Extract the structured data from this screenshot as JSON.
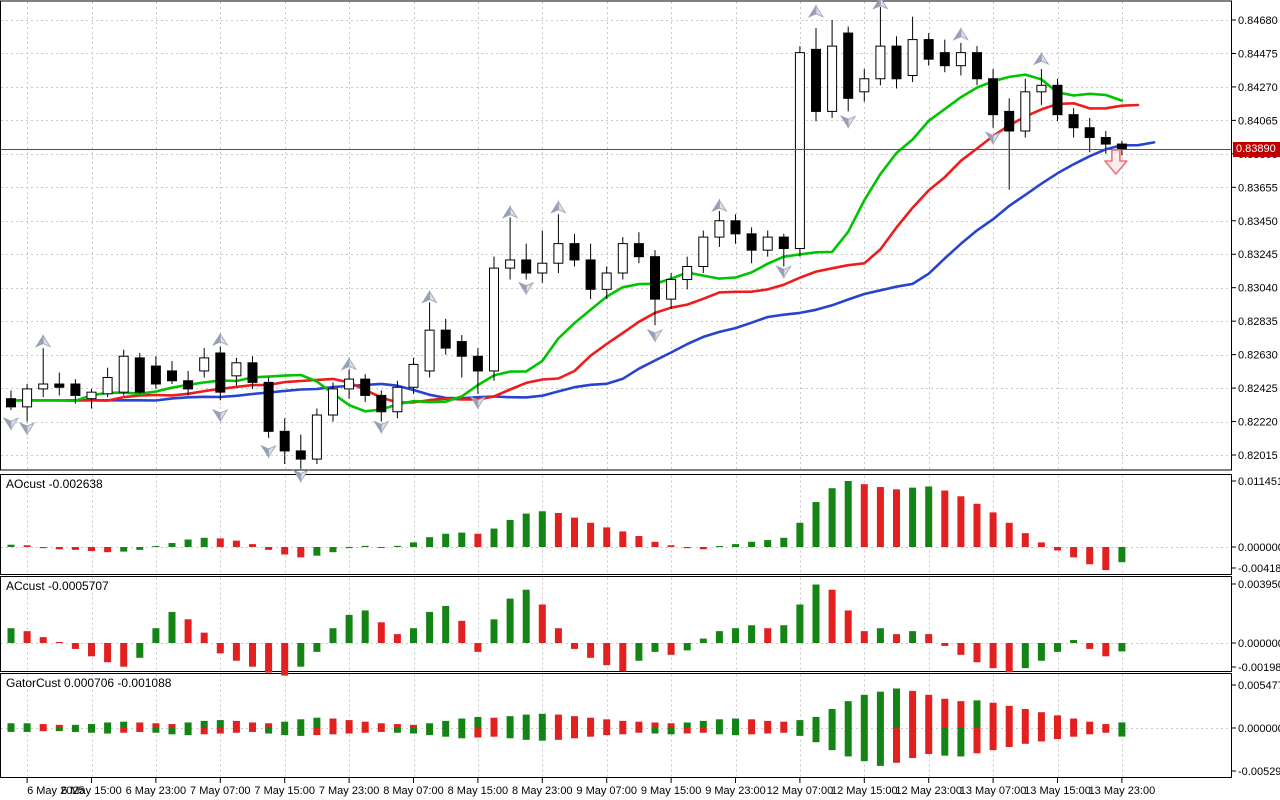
{
  "current_price_label": "0.83890",
  "chart_data": {
    "type": "candlestick-with-indicators",
    "timeframe": "2-hour bars",
    "title": "",
    "current_price": "0.83890",
    "current_price_value": 0.8389,
    "price_axis": {
      "ticks": [
        "0.84680",
        "0.84475",
        "0.84270",
        "0.84065",
        "0.83860",
        "0.83655",
        "0.83450",
        "0.83245",
        "0.83040",
        "0.82835",
        "0.82630",
        "0.82425",
        "0.82220",
        "0.82015"
      ],
      "tick_values": [
        0.8468,
        0.84475,
        0.8427,
        0.84065,
        0.8386,
        0.83655,
        0.8345,
        0.83245,
        0.8304,
        0.82835,
        0.8263,
        0.82425,
        0.8222,
        0.82015
      ],
      "max": 0.8468,
      "min": 0.82015,
      "step": 0.00205
    },
    "time_axis": {
      "labels": [
        "6 May 2025",
        "6 May 15:00",
        "6 May 23:00",
        "7 May 07:00",
        "7 May 15:00",
        "7 May 23:00",
        "8 May 07:00",
        "8 May 15:00",
        "8 May 23:00",
        "9 May 07:00",
        "9 May 15:00",
        "9 May 23:00",
        "12 May 07:00",
        "12 May 15:00",
        "12 May 23:00",
        "13 May 07:00",
        "13 May 15:00",
        "13 May 23:00"
      ],
      "label_every_n_bars": 4,
      "first_label_bar": 1
    },
    "candles": [
      [
        0.8236,
        0.8241,
        0.8229,
        0.8231
      ],
      [
        0.8231,
        0.8245,
        0.8222,
        0.8242
      ],
      [
        0.8242,
        0.8267,
        0.8237,
        0.8245
      ],
      [
        0.8245,
        0.8252,
        0.8238,
        0.8243
      ],
      [
        0.8245,
        0.8248,
        0.8233,
        0.8238
      ],
      [
        0.8236,
        0.8242,
        0.823,
        0.824
      ],
      [
        0.8239,
        0.8255,
        0.8237,
        0.8249
      ],
      [
        0.824,
        0.8266,
        0.8238,
        0.8262
      ],
      [
        0.8261,
        0.8264,
        0.8239,
        0.824
      ],
      [
        0.8256,
        0.8262,
        0.8242,
        0.8245
      ],
      [
        0.8253,
        0.8259,
        0.8245,
        0.8247
      ],
      [
        0.8247,
        0.8253,
        0.8238,
        0.8242
      ],
      [
        0.8253,
        0.8267,
        0.8249,
        0.8261
      ],
      [
        0.8264,
        0.8268,
        0.8235,
        0.824
      ],
      [
        0.825,
        0.8261,
        0.8244,
        0.8258
      ],
      [
        0.8258,
        0.8262,
        0.8242,
        0.8246
      ],
      [
        0.8246,
        0.8249,
        0.8212,
        0.8216
      ],
      [
        0.8216,
        0.8224,
        0.8196,
        0.8204
      ],
      [
        0.8204,
        0.8214,
        0.8193,
        0.8199
      ],
      [
        0.8199,
        0.823,
        0.8196,
        0.8226
      ],
      [
        0.8226,
        0.8246,
        0.8222,
        0.8242
      ],
      [
        0.8242,
        0.8254,
        0.8236,
        0.8248
      ],
      [
        0.8248,
        0.8251,
        0.8234,
        0.8238
      ],
      [
        0.8238,
        0.8241,
        0.8222,
        0.8228
      ],
      [
        0.8228,
        0.8247,
        0.8224,
        0.8243
      ],
      [
        0.8243,
        0.8261,
        0.8239,
        0.8257
      ],
      [
        0.8253,
        0.8295,
        0.8249,
        0.8278
      ],
      [
        0.8278,
        0.8285,
        0.8263,
        0.8267
      ],
      [
        0.8271,
        0.8275,
        0.8249,
        0.8262
      ],
      [
        0.8262,
        0.8267,
        0.8239,
        0.8253
      ],
      [
        0.8253,
        0.8323,
        0.8247,
        0.8316
      ],
      [
        0.8316,
        0.8347,
        0.8309,
        0.8321
      ],
      [
        0.8321,
        0.8331,
        0.8309,
        0.8313
      ],
      [
        0.8313,
        0.8339,
        0.8307,
        0.8319
      ],
      [
        0.8319,
        0.8349,
        0.8313,
        0.8331
      ],
      [
        0.8331,
        0.8337,
        0.8317,
        0.8321
      ],
      [
        0.8321,
        0.8331,
        0.8297,
        0.8303
      ],
      [
        0.8303,
        0.8317,
        0.8297,
        0.8313
      ],
      [
        0.8313,
        0.8335,
        0.8309,
        0.8331
      ],
      [
        0.8331,
        0.8338,
        0.8319,
        0.8323
      ],
      [
        0.8323,
        0.8327,
        0.8281,
        0.8297
      ],
      [
        0.8297,
        0.8313,
        0.8291,
        0.8309
      ],
      [
        0.8309,
        0.8323,
        0.8303,
        0.8317
      ],
      [
        0.8317,
        0.8339,
        0.8313,
        0.8335
      ],
      [
        0.8335,
        0.8351,
        0.8329,
        0.8345
      ],
      [
        0.8345,
        0.8349,
        0.8331,
        0.8337
      ],
      [
        0.8337,
        0.8341,
        0.8319,
        0.8327
      ],
      [
        0.8327,
        0.8339,
        0.8323,
        0.8335
      ],
      [
        0.8335,
        0.8337,
        0.8317,
        0.8328
      ],
      [
        0.8328,
        0.8452,
        0.8323,
        0.8448
      ],
      [
        0.845,
        0.8463,
        0.8406,
        0.8412
      ],
      [
        0.8412,
        0.8468,
        0.8408,
        0.8452
      ],
      [
        0.846,
        0.8464,
        0.8412,
        0.842
      ],
      [
        0.8424,
        0.8438,
        0.8418,
        0.8432
      ],
      [
        0.8432,
        0.8476,
        0.8428,
        0.8452
      ],
      [
        0.8452,
        0.8458,
        0.8426,
        0.8432
      ],
      [
        0.8434,
        0.847,
        0.843,
        0.8456
      ],
      [
        0.8456,
        0.846,
        0.844,
        0.8444
      ],
      [
        0.8448,
        0.8456,
        0.8436,
        0.844
      ],
      [
        0.844,
        0.8454,
        0.8434,
        0.8448
      ],
      [
        0.8448,
        0.8452,
        0.8428,
        0.8432
      ],
      [
        0.8432,
        0.8438,
        0.8402,
        0.841
      ],
      [
        0.8412,
        0.842,
        0.8364,
        0.84
      ],
      [
        0.84,
        0.8432,
        0.8396,
        0.8424
      ],
      [
        0.8424,
        0.8438,
        0.8416,
        0.8428
      ],
      [
        0.8428,
        0.8432,
        0.8406,
        0.841
      ],
      [
        0.841,
        0.8414,
        0.8396,
        0.8402
      ],
      [
        0.8402,
        0.8408,
        0.8387,
        0.8396
      ],
      [
        0.8396,
        0.84,
        0.8386,
        0.8392
      ],
      [
        0.8392,
        0.8394,
        0.8385,
        0.8389
      ]
    ],
    "alligator": {
      "jaw": {
        "period": 13,
        "shift": 8,
        "color": "#2644cf",
        "name": "jaw"
      },
      "teeth": {
        "period": 8,
        "shift": 5,
        "color": "#ee1c1c",
        "name": "teeth"
      },
      "lips": {
        "period": 5,
        "shift": 3,
        "color": "#00c400",
        "name": "lips"
      }
    },
    "fractals": {
      "up": [
        [
          2,
          0.8271
        ],
        [
          13,
          0.8272
        ],
        [
          21,
          0.8257
        ],
        [
          26,
          0.8298
        ],
        [
          31,
          0.835
        ],
        [
          34,
          0.8353
        ],
        [
          44,
          0.8354
        ],
        [
          50,
          0.8473
        ],
        [
          54,
          0.8478
        ],
        [
          59,
          0.8459
        ],
        [
          64,
          0.8444
        ]
      ],
      "down": [
        [
          0,
          0.8221
        ],
        [
          1,
          0.8218
        ],
        [
          13,
          0.8226
        ],
        [
          16,
          0.8204
        ],
        [
          18,
          0.8189
        ],
        [
          23,
          0.8219
        ],
        [
          29,
          0.8234
        ],
        [
          32,
          0.8304
        ],
        [
          40,
          0.8275
        ],
        [
          48,
          0.8314
        ],
        [
          52,
          0.8406
        ],
        [
          61,
          0.8396
        ]
      ]
    },
    "sell_arrow": {
      "bar": 69,
      "note": "red outlined down-arrow below last candle"
    },
    "ao": {
      "name": "AOcust",
      "last_value": "-0.002638",
      "title": "AOcust -0.002638",
      "axis": [
        "0.011451",
        "0.000000",
        "-0.004180"
      ],
      "values": [
        0.0004,
        0.0003,
        -0.0002,
        -0.0004,
        -0.0005,
        -0.0007,
        -0.0009,
        -0.0008,
        -0.0005,
        0.0001,
        0.0007,
        0.0013,
        0.0016,
        0.0015,
        0.0011,
        0.0005,
        -0.0005,
        -0.0013,
        -0.0018,
        -0.0015,
        -0.0009,
        -0.0002,
        0.0002,
        -0.0001,
        0.0002,
        0.0008,
        0.0017,
        0.0023,
        0.0025,
        0.0023,
        0.0032,
        0.0047,
        0.0058,
        0.0062,
        0.0059,
        0.0051,
        0.0042,
        0.0034,
        0.0027,
        0.0019,
        0.0009,
        0.0003,
        -0.0002,
        -0.0004,
        0.0001,
        0.0005,
        0.0009,
        0.0012,
        0.0016,
        0.0042,
        0.0078,
        0.0102,
        0.011451,
        0.0109,
        0.0104,
        0.01,
        0.0103,
        0.0105,
        0.0098,
        0.0088,
        0.0075,
        0.006,
        0.0042,
        0.0024,
        0.0008,
        -0.0006,
        -0.0018,
        -0.003,
        -0.004,
        -0.002638
      ]
    },
    "ac": {
      "name": "ACcust",
      "last_value": "-0.0005707",
      "title": "ACcust -0.0005707",
      "axis": [
        "0.0039504",
        "0.0000000",
        "-0.0019834"
      ],
      "values": [
        0.001,
        0.0008,
        0.0004,
        0.0,
        -0.0004,
        -0.0009,
        -0.0013,
        -0.0016,
        -0.001,
        0.001,
        0.0021,
        0.0016,
        0.0007,
        -0.0007,
        -0.0012,
        -0.0016,
        -0.002,
        -0.0022,
        -0.0016,
        -0.0006,
        0.001,
        0.0019,
        0.0022,
        0.0014,
        0.0006,
        0.001,
        0.0021,
        0.0025,
        0.0015,
        -0.0006,
        0.0016,
        0.003,
        0.0036,
        0.0026,
        0.001,
        -0.0004,
        -0.001,
        -0.0015,
        -0.0019,
        -0.0012,
        -0.0006,
        -0.0008,
        -0.0005,
        0.0003,
        0.0008,
        0.001,
        0.0012,
        0.001,
        0.0012,
        0.0026,
        0.0039504,
        0.0036,
        0.0022,
        0.0008,
        0.001,
        0.0006,
        0.0008,
        0.0006,
        -0.0002,
        -0.0008,
        -0.0013,
        -0.0017,
        -0.0019834,
        -0.0017,
        -0.0012,
        -0.0006,
        0.0002,
        -0.0004,
        -0.0009,
        -0.0005707
      ]
    },
    "gator": {
      "name": "GatorCust",
      "last_value": "0.000706 -0.001088",
      "title": "GatorCust 0.000706 -0.001088",
      "axis": [
        "0.005477",
        "0.000000",
        "-0.005290"
      ],
      "upper": [
        0.0006,
        0.0006,
        0.0005,
        0.0004,
        0.0004,
        0.0005,
        0.0007,
        0.0008,
        0.0007,
        0.0006,
        0.0005,
        0.0007,
        0.0009,
        0.001,
        0.0009,
        0.0007,
        0.0006,
        0.0008,
        0.0011,
        0.0013,
        0.0012,
        0.001,
        0.0008,
        0.0006,
        0.0005,
        0.0004,
        0.0006,
        0.0009,
        0.0012,
        0.0014,
        0.0013,
        0.0015,
        0.0017,
        0.0018,
        0.0017,
        0.0015,
        0.0013,
        0.0011,
        0.0009,
        0.0008,
        0.0007,
        0.0006,
        0.0007,
        0.0009,
        0.0011,
        0.0012,
        0.0011,
        0.0009,
        0.0008,
        0.001,
        0.0014,
        0.0024,
        0.0034,
        0.0042,
        0.0046,
        0.005,
        0.0047,
        0.0042,
        0.0037,
        0.0034,
        0.0035,
        0.0032,
        0.0028,
        0.0024,
        0.002,
        0.0016,
        0.0012,
        0.0008,
        0.0005,
        0.000706
      ],
      "lower": [
        -0.0005,
        -0.0005,
        -0.0004,
        -0.0004,
        -0.0005,
        -0.0006,
        -0.0007,
        -0.0006,
        -0.0005,
        -0.0006,
        -0.0008,
        -0.0009,
        -0.0008,
        -0.0007,
        -0.0006,
        -0.0005,
        -0.0007,
        -0.0009,
        -0.001,
        -0.0009,
        -0.0008,
        -0.0007,
        -0.0006,
        -0.0005,
        -0.0006,
        -0.0007,
        -0.0009,
        -0.0011,
        -0.0013,
        -0.0012,
        -0.0011,
        -0.0013,
        -0.0015,
        -0.0016,
        -0.0015,
        -0.0013,
        -0.0011,
        -0.0009,
        -0.0008,
        -0.0006,
        -0.0007,
        -0.0008,
        -0.0007,
        -0.0006,
        -0.0008,
        -0.0009,
        -0.0008,
        -0.0007,
        -0.0006,
        -0.001,
        -0.0018,
        -0.0028,
        -0.0036,
        -0.0042,
        -0.0048,
        -0.0044,
        -0.0038,
        -0.0033,
        -0.0035,
        -0.0036,
        -0.0032,
        -0.0028,
        -0.0024,
        -0.002,
        -0.0017,
        -0.0014,
        -0.0011,
        -0.0008,
        -0.0006,
        -0.001088
      ]
    },
    "colors": {
      "bull_candle": "#ffffff",
      "bear_candle": "#000000",
      "candle_outline": "#000000",
      "hist_up": "#148414",
      "hist_down": "#e32020",
      "grid": "#c9c9c9",
      "panel_border": "#000000",
      "price_line": "#a03232",
      "price_label_bg": "#c00000",
      "fractal_light": "#d9dde8",
      "fractal_dark": "#98a0b4",
      "sell_arrow_stroke": "#f4707e",
      "sell_arrow_fill": "#fdedef"
    }
  }
}
